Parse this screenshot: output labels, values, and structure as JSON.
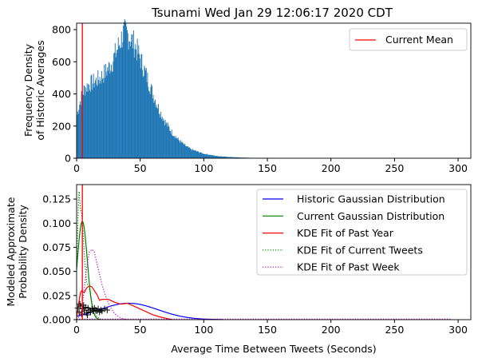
{
  "figure": {
    "title": "Tsunami Wed Jan 29 12:06:17 2020 CDT"
  },
  "chart_data": [
    {
      "type": "bar",
      "name": "historic-histogram",
      "ylabel_line1": "Frequency Density",
      "ylabel_line2": "of Historic Averages",
      "xlim": [
        0,
        310
      ],
      "ylim": [
        0,
        840
      ],
      "xticks": [
        0,
        50,
        100,
        150,
        200,
        250,
        300
      ],
      "yticks": [
        0,
        200,
        400,
        600,
        800
      ],
      "bar_color": "#1f77b4",
      "mean_line_color": "#ff0000",
      "current_mean_x": 4.5,
      "legend": {
        "placement": "top-right",
        "entries": [
          {
            "label": "Current Mean",
            "color": "#ff0000",
            "style": "solid"
          }
        ]
      },
      "profile": [
        [
          0,
          260
        ],
        [
          2,
          330
        ],
        [
          4,
          390
        ],
        [
          6,
          430
        ],
        [
          10,
          460
        ],
        [
          15,
          480
        ],
        [
          20,
          510
        ],
        [
          25,
          560
        ],
        [
          28,
          600
        ],
        [
          32,
          680
        ],
        [
          35,
          740
        ],
        [
          37,
          780
        ],
        [
          40,
          770
        ],
        [
          43,
          740
        ],
        [
          46,
          700
        ],
        [
          50,
          620
        ],
        [
          55,
          510
        ],
        [
          60,
          400
        ],
        [
          65,
          300
        ],
        [
          70,
          220
        ],
        [
          75,
          160
        ],
        [
          80,
          115
        ],
        [
          85,
          80
        ],
        [
          90,
          55
        ],
        [
          100,
          28
        ],
        [
          110,
          14
        ],
        [
          120,
          8
        ],
        [
          130,
          4
        ],
        [
          140,
          2
        ],
        [
          150,
          1.2
        ],
        [
          160,
          0.6
        ],
        [
          200,
          0
        ]
      ]
    },
    {
      "type": "line",
      "name": "probability-density",
      "xlabel": "Average Time Between Tweets (Seconds)",
      "ylabel_line1": "Modeled Approximate",
      "ylabel_line2": "Probability Density",
      "xlim": [
        0,
        310
      ],
      "ylim": [
        0,
        0.14
      ],
      "xticks": [
        0,
        50,
        100,
        150,
        200,
        250,
        300
      ],
      "yticks": [
        "0.000",
        "0.025",
        "0.050",
        "0.075",
        "0.100",
        "0.125"
      ],
      "current_mean_x": 4.5,
      "legend": {
        "placement": "top-right"
      },
      "series": [
        {
          "name": "Historic Gaussian Distribution",
          "color": "#0000ff",
          "style": "solid",
          "kind": "gaussian",
          "mean": 41,
          "sd": 23,
          "peak": 0.017,
          "x_range": [
            0,
            115
          ]
        },
        {
          "name": "Current Gaussian Distribution",
          "color": "#008000",
          "style": "solid",
          "kind": "gaussian",
          "mean": 4.5,
          "sd": 3.9,
          "peak": 0.102,
          "x_range": [
            0,
            18
          ]
        },
        {
          "name": "KDE Fit of Past Year",
          "color": "#ff0000",
          "style": "solid",
          "kind": "points",
          "x": [
            0,
            1,
            2,
            3,
            4,
            5,
            6,
            8,
            10,
            12,
            14,
            16,
            18,
            20,
            25,
            30,
            35,
            40,
            45,
            50,
            55,
            60,
            65,
            70,
            75
          ],
          "y": [
            0.002,
            0.01,
            0.02,
            0.028,
            0.03,
            0.029,
            0.028,
            0.033,
            0.035,
            0.034,
            0.03,
            0.026,
            0.02,
            0.021,
            0.021,
            0.018,
            0.016,
            0.017,
            0.014,
            0.011,
            0.008,
            0.005,
            0.003,
            0.0015,
            0
          ]
        },
        {
          "name": "KDE Fit of Current Tweets",
          "color": "#008000",
          "style": "dotted",
          "kind": "points",
          "x": [
            0,
            1,
            1.5,
            2,
            3,
            4,
            5,
            6,
            7,
            8,
            9,
            10,
            11,
            12,
            13,
            14,
            16,
            18,
            20
          ],
          "y": [
            0.052,
            0.1,
            0.127,
            0.133,
            0.115,
            0.11,
            0.092,
            0.068,
            0.05,
            0.038,
            0.035,
            0.032,
            0.025,
            0.018,
            0.012,
            0.007,
            0.003,
            0.001,
            0
          ]
        },
        {
          "name": "KDE Fit of Past Week",
          "color": "#bf00bf",
          "style": "dotted",
          "kind": "points",
          "x": [
            0,
            2,
            4,
            6,
            8,
            10,
            12,
            14,
            16,
            18,
            20,
            22,
            24,
            26,
            28,
            30,
            33,
            36,
            40
          ],
          "y": [
            0.0,
            0.003,
            0.01,
            0.032,
            0.055,
            0.07,
            0.073,
            0.07,
            0.058,
            0.047,
            0.036,
            0.028,
            0.02,
            0.014,
            0.01,
            0.006,
            0.003,
            0.001,
            0
          ]
        }
      ],
      "rug_marker": "+",
      "rug_points": [
        [
          1,
          0.012
        ],
        [
          2,
          0.008
        ],
        [
          3,
          0.014
        ],
        [
          4,
          0.006
        ],
        [
          5,
          0.011
        ],
        [
          6,
          0.009
        ],
        [
          7,
          0.013
        ],
        [
          8,
          0.007
        ],
        [
          9,
          0.012
        ],
        [
          10,
          0.01
        ],
        [
          11,
          0.008
        ],
        [
          12,
          0.011
        ],
        [
          13,
          0.009
        ],
        [
          14,
          0.012
        ],
        [
          15,
          0.01
        ],
        [
          16,
          0.009
        ],
        [
          17,
          0.011
        ],
        [
          18,
          0.008
        ],
        [
          19,
          0.01
        ],
        [
          20,
          0.009
        ],
        [
          22,
          0.011
        ],
        [
          24,
          0.01
        ],
        [
          2.5,
          0.016
        ],
        [
          5.5,
          0.015
        ],
        [
          8.5,
          0.005
        ]
      ]
    }
  ]
}
